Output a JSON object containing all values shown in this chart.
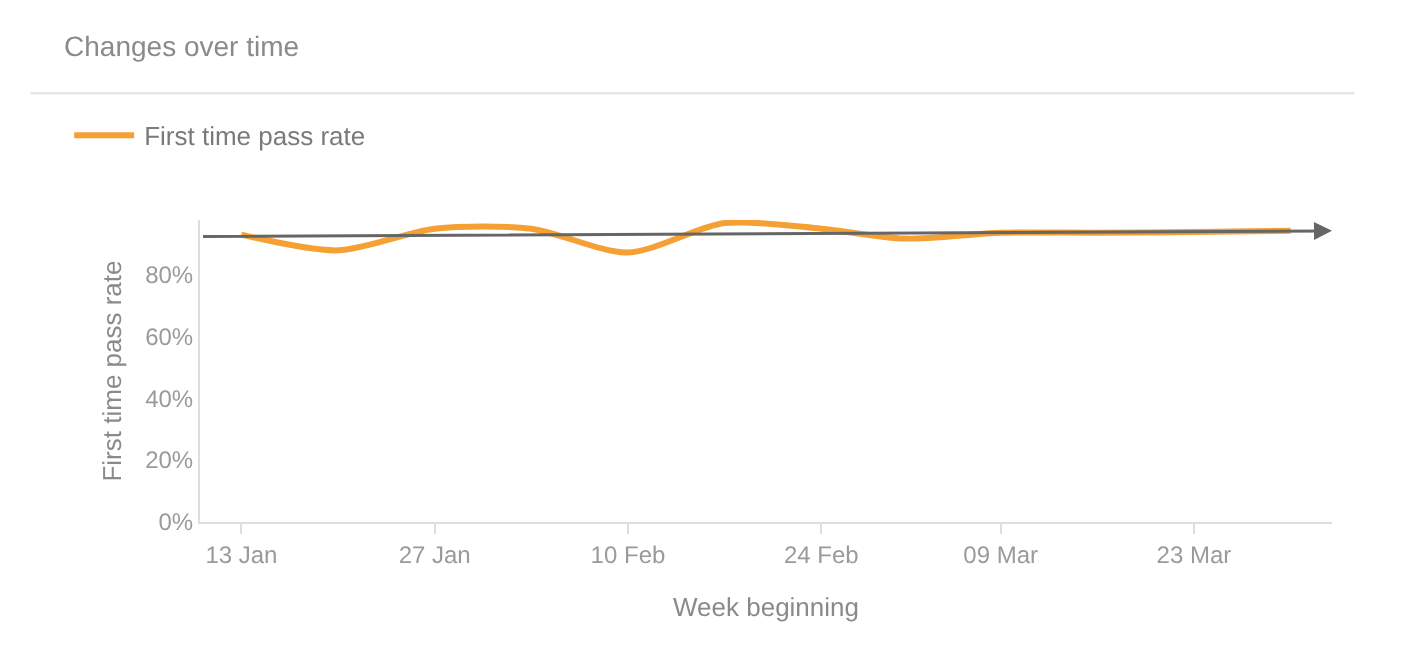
{
  "chart_data": {
    "type": "line",
    "title": "Changes over time",
    "xlabel": "Week beginning",
    "ylabel": "First time pass rate",
    "x": [
      "--01-13",
      "--01-20",
      "--01-27",
      "--02-03",
      "--02-10",
      "--02-17",
      "--02-24",
      "--03-02",
      "--03-09",
      "--03-16",
      "--03-23",
      "--03-30"
    ],
    "series": [
      {
        "name": "First time pass rate",
        "color": "#f5a033",
        "values": [
          92.8,
          87.7,
          94.7,
          94.7,
          87,
          96.5,
          94.7,
          91.5,
          93.4,
          93.4,
          93.6,
          94
        ]
      }
    ],
    "xlim": [
      "--01-10",
      "--04-02"
    ],
    "xticks": [
      {
        "value": "--01-13",
        "label": "13 Jan"
      },
      {
        "value": "--01-27",
        "label": "27 Jan"
      },
      {
        "value": "--02-10",
        "label": "10 Feb"
      },
      {
        "value": "--02-24",
        "label": "24 Feb"
      },
      {
        "value": "--03-09",
        "label": "09 Mar"
      },
      {
        "value": "--03-23",
        "label": "23 Mar"
      }
    ],
    "ylim": [
      0,
      97.5
    ],
    "yticks": [
      {
        "value": 0,
        "label": "0%"
      },
      {
        "value": 20,
        "label": "20%"
      },
      {
        "value": 40,
        "label": "40%"
      },
      {
        "value": 60,
        "label": "60%"
      },
      {
        "value": 80,
        "label": "80%"
      }
    ],
    "grid": false,
    "legend": "top left"
  }
}
